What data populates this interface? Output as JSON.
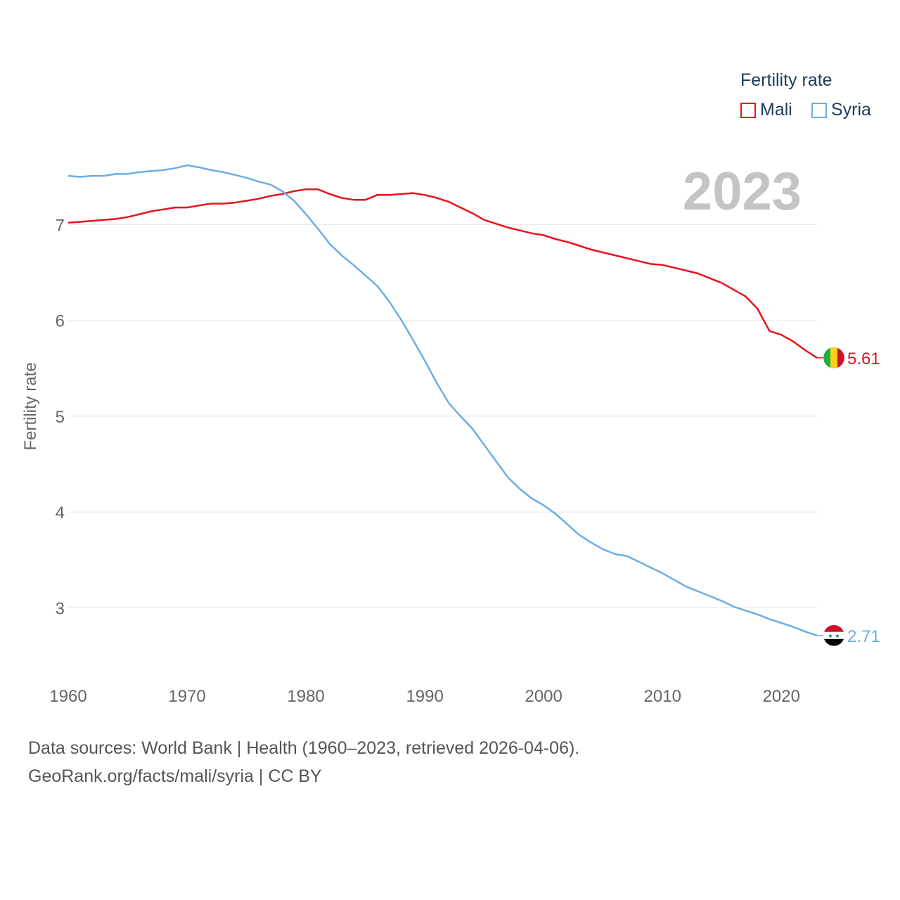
{
  "chart_data": {
    "type": "line",
    "year_label": "2023",
    "ylabel": "Fertility rate",
    "legend_title": "Fertility rate",
    "xlim": [
      1960,
      2023
    ],
    "ylim": [
      2.4,
      7.9
    ],
    "x_ticks": [
      1960,
      1970,
      1980,
      1990,
      2000,
      2010,
      2020
    ],
    "y_ticks": [
      3,
      4,
      5,
      6,
      7
    ],
    "x": [
      1960,
      1961,
      1962,
      1963,
      1964,
      1965,
      1966,
      1967,
      1968,
      1969,
      1970,
      1971,
      1972,
      1973,
      1974,
      1975,
      1976,
      1977,
      1978,
      1979,
      1980,
      1981,
      1982,
      1983,
      1984,
      1985,
      1986,
      1987,
      1988,
      1989,
      1990,
      1991,
      1992,
      1993,
      1994,
      1995,
      1996,
      1997,
      1998,
      1999,
      2000,
      2001,
      2002,
      2003,
      2004,
      2005,
      2006,
      2007,
      2008,
      2009,
      2010,
      2011,
      2012,
      2013,
      2014,
      2015,
      2016,
      2017,
      2018,
      2019,
      2020,
      2021,
      2022,
      2023
    ],
    "series": [
      {
        "name": "Mali",
        "color": "#e8131a",
        "end_label": "5.61",
        "values": [
          7.02,
          7.03,
          7.04,
          7.05,
          7.06,
          7.08,
          7.11,
          7.14,
          7.16,
          7.18,
          7.18,
          7.2,
          7.22,
          7.22,
          7.23,
          7.25,
          7.27,
          7.3,
          7.32,
          7.35,
          7.37,
          7.37,
          7.32,
          7.28,
          7.26,
          7.26,
          7.31,
          7.31,
          7.32,
          7.33,
          7.31,
          7.28,
          7.24,
          7.18,
          7.12,
          7.05,
          7.01,
          6.97,
          6.94,
          6.91,
          6.89,
          6.85,
          6.82,
          6.78,
          6.74,
          6.71,
          6.68,
          6.65,
          6.62,
          6.59,
          6.58,
          6.55,
          6.52,
          6.49,
          6.44,
          6.39,
          6.32,
          6.25,
          6.12,
          5.89,
          5.85,
          5.78,
          5.69,
          5.61
        ]
      },
      {
        "name": "Syria",
        "color": "#6aaee6",
        "end_label": "2.71",
        "values": [
          7.51,
          7.5,
          7.51,
          7.51,
          7.53,
          7.53,
          7.55,
          7.56,
          7.57,
          7.59,
          7.62,
          7.6,
          7.57,
          7.55,
          7.52,
          7.49,
          7.45,
          7.42,
          7.35,
          7.25,
          7.11,
          6.96,
          6.8,
          6.68,
          6.58,
          6.47,
          6.36,
          6.2,
          6.01,
          5.8,
          5.58,
          5.35,
          5.14,
          5.0,
          4.87,
          4.7,
          4.53,
          4.36,
          4.24,
          4.14,
          4.07,
          3.98,
          3.87,
          3.76,
          3.68,
          3.61,
          3.56,
          3.54,
          3.48,
          3.42,
          3.36,
          3.29,
          3.22,
          3.17,
          3.12,
          3.07,
          3.01,
          2.97,
          2.93,
          2.88,
          2.84,
          2.8,
          2.75,
          2.71
        ]
      }
    ]
  },
  "sources": {
    "line1": "Data sources: World Bank | Health (1960–2023, retrieved 2026-04-06).",
    "line2": "GeoRank.org/facts/mali/syria | CC BY"
  }
}
